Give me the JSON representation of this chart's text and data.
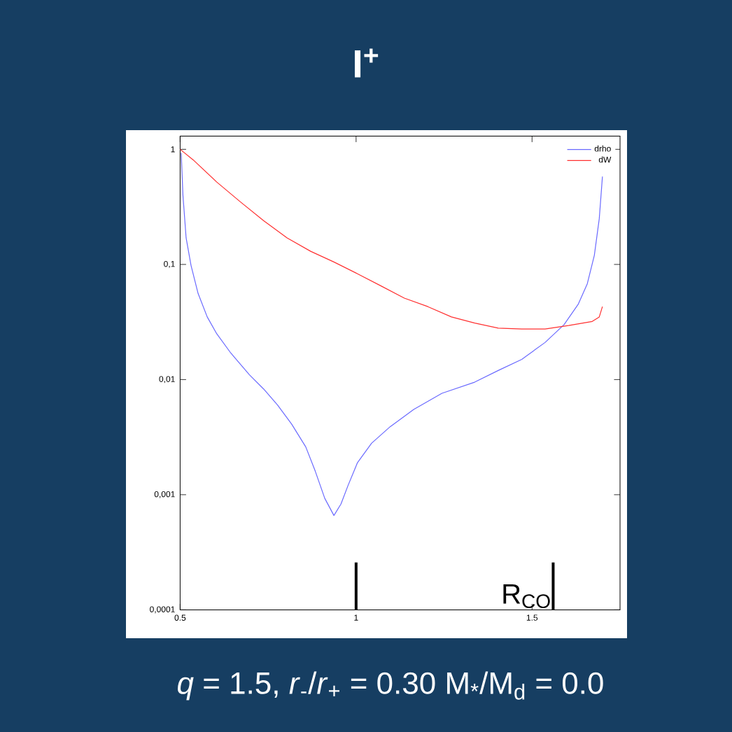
{
  "chart_data": {
    "type": "line",
    "title": "I$^{+}$",
    "annotations": [
      "*q* = 1.5, *r*$_{-}$/*r*$_{+}$ = 0.30 M$_{*}$/M$_{d}$ = 0.0"
    ],
    "log": "y",
    "legend": "top right",
    "marker": "none",
    "line_style": "solid",
    "xlim": [
      0.5,
      1.75
    ],
    "xticks": [
      {
        "value": 0.5,
        "label": "0.5"
      },
      1,
      {
        "value": 1.5,
        "label": "1.5"
      }
    ],
    "ylim": [
      0.0001,
      1.3
    ],
    "yticks": [
      {
        "value": 0.0001,
        "label": "0,0001"
      },
      {
        "value": 0.001,
        "label": "0,001"
      },
      {
        "value": 0.01,
        "label": "0,01"
      },
      {
        "value": 0.1,
        "label": "0,1"
      },
      1
    ],
    "ref_lines": [
      {
        "axis": "x",
        "value": 1,
        "color": "#000000"
      },
      {
        "axis": "x",
        "value": 1.56,
        "label": "R$_{CO}$",
        "color": "#000000"
      }
    ],
    "series": [
      {
        "name": "drho",
        "color": "#6a6aff",
        "x": [
          0.503,
          0.508,
          0.517,
          0.531,
          0.551,
          0.577,
          0.604,
          0.644,
          0.697,
          0.737,
          0.777,
          0.817,
          0.857,
          0.884,
          0.911,
          0.937,
          0.957,
          0.977,
          1.004,
          1.044,
          1.097,
          1.164,
          1.244,
          1.337,
          1.404,
          1.471,
          1.537,
          1.591,
          1.631,
          1.657,
          1.677,
          1.691,
          1.7
        ],
        "values": [
          0.93,
          0.4,
          0.17,
          0.098,
          0.056,
          0.035,
          0.025,
          0.017,
          0.011,
          0.0083,
          0.006,
          0.0041,
          0.0026,
          0.0016,
          0.00093,
          0.00066,
          0.00083,
          0.0012,
          0.0019,
          0.0028,
          0.0039,
          0.0055,
          0.0076,
          0.0095,
          0.012,
          0.015,
          0.021,
          0.03,
          0.045,
          0.068,
          0.12,
          0.25,
          0.58
        ]
      },
      {
        "name": "dW",
        "color": "#ff3030",
        "x": [
          0.5,
          0.537,
          0.604,
          0.671,
          0.737,
          0.804,
          0.871,
          0.937,
          1.004,
          1.071,
          1.137,
          1.204,
          1.271,
          1.337,
          1.404,
          1.471,
          1.537,
          1.604,
          1.671,
          1.691,
          1.7
        ],
        "values": [
          1.0,
          0.81,
          0.52,
          0.35,
          0.24,
          0.17,
          0.13,
          0.105,
          0.083,
          0.065,
          0.051,
          0.043,
          0.035,
          0.031,
          0.028,
          0.0275,
          0.0275,
          0.0295,
          0.032,
          0.035,
          0.043
        ]
      }
    ]
  }
}
